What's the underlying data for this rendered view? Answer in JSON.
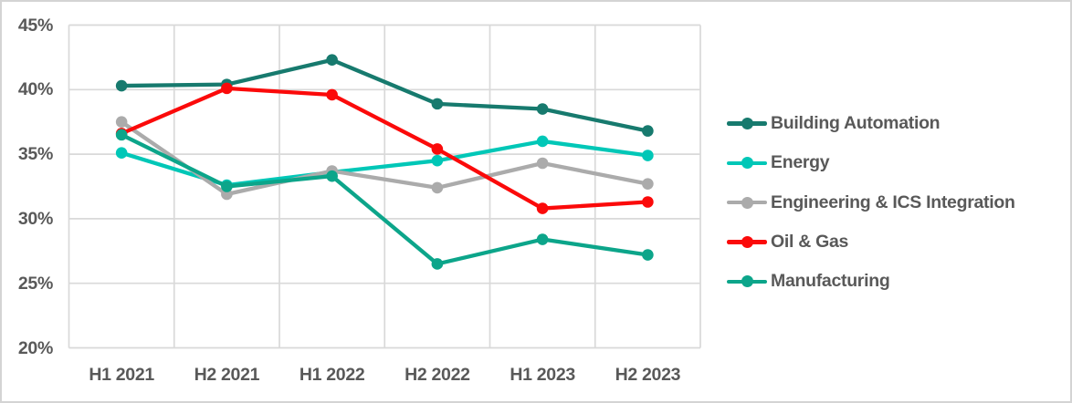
{
  "chart_data": {
    "type": "line",
    "categories": [
      "H1 2021",
      "H2 2021",
      "H1 2022",
      "H2 2022",
      "H1 2023",
      "H2 2023"
    ],
    "series": [
      {
        "name": "Building Automation",
        "color": "#177A6E",
        "values": [
          40.3,
          40.4,
          42.3,
          38.9,
          38.5,
          36.8
        ]
      },
      {
        "name": "Energy",
        "color": "#00C7B7",
        "values": [
          35.1,
          32.6,
          33.6,
          34.5,
          36.0,
          34.9
        ]
      },
      {
        "name": "Engineering & ICS Integration",
        "color": "#ABABAB",
        "values": [
          37.5,
          31.9,
          33.7,
          32.4,
          34.3,
          32.7
        ]
      },
      {
        "name": "Oil & Gas",
        "color": "#FB0A0A",
        "values": [
          36.6,
          40.1,
          39.6,
          35.4,
          30.8,
          31.3
        ]
      },
      {
        "name": "Manufacturing",
        "color": "#0CA58A",
        "values": [
          36.5,
          32.5,
          33.3,
          26.5,
          28.4,
          27.2
        ]
      }
    ],
    "y_axis": {
      "tick_labels": [
        "45%",
        "40%",
        "35%",
        "30%",
        "25%",
        "20%"
      ],
      "tick_values": [
        45,
        40,
        35,
        30,
        25,
        20
      ],
      "min": 20,
      "max": 45
    },
    "grid": true,
    "legend_position": "right",
    "text_color": "#595959",
    "gridline_color": "#D9D9D9"
  }
}
